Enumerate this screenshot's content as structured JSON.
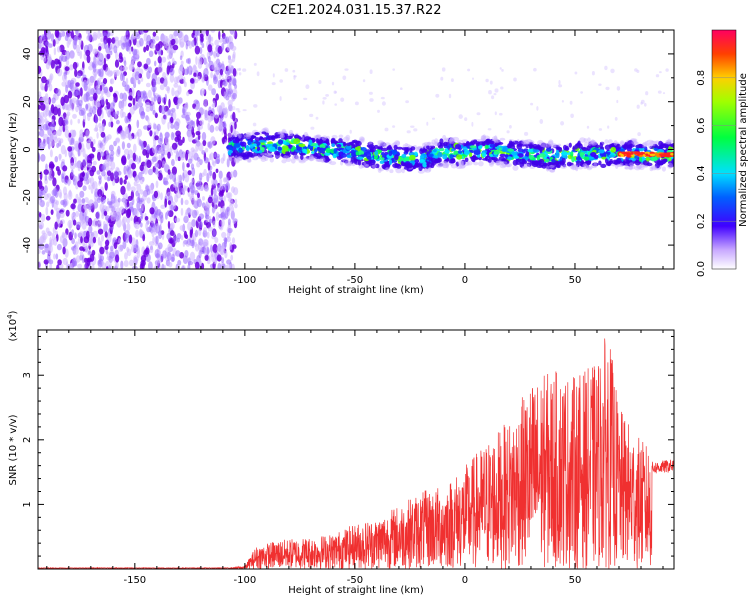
{
  "title": "C2E1.2024.031.15.37.R22",
  "colors": {
    "snr_line": "#f03030",
    "purple_dark": "#6a00e0",
    "purple_light": "#cdb4ff"
  },
  "chart_data": [
    {
      "type": "heatmap",
      "name": "spectrogram",
      "xlabel": "Height of straight line (km)",
      "ylabel": "Frequency (Hz)",
      "xlim": [
        -194,
        95
      ],
      "ylim": [
        -50,
        50
      ],
      "xticks": [
        "-150",
        "-100",
        "-50",
        "0",
        "50"
      ],
      "xtick_values": [
        -150,
        -100,
        -50,
        0,
        50
      ],
      "yticks": [
        "-40",
        "-20",
        "0",
        "20",
        "40"
      ],
      "ytick_values": [
        -40,
        -20,
        0,
        20,
        40
      ],
      "colorbar": {
        "label": "Normalized spectral amplitude",
        "ticks": [
          "0.0",
          "0.2",
          "0.4",
          "0.6",
          "0.8"
        ],
        "tick_values": [
          0.0,
          0.2,
          0.4,
          0.6,
          0.8
        ],
        "range": [
          0,
          1
        ]
      },
      "noise_region_x": [
        -194,
        -107
      ],
      "signal_band": {
        "x_start": -107,
        "center_frequency_points": [
          [
            -105,
            1
          ],
          [
            -90,
            2
          ],
          [
            -75,
            1
          ],
          [
            -60,
            0
          ],
          [
            -45,
            -2
          ],
          [
            -30,
            -3
          ],
          [
            -20,
            -4
          ],
          [
            -10,
            -1
          ],
          [
            0,
            -1
          ],
          [
            10,
            0
          ],
          [
            20,
            -2
          ],
          [
            30,
            -2
          ],
          [
            40,
            -3
          ],
          [
            50,
            -2
          ],
          [
            60,
            -2
          ],
          [
            70,
            -2
          ],
          [
            80,
            -2
          ],
          [
            95,
            -2
          ]
        ]
      },
      "grid": false
    },
    {
      "type": "line",
      "name": "snr",
      "xlabel": "Height of straight line (km)",
      "ylabel": "SNR (10 * v/v)",
      "y_multiplier": "(x10",
      "y_multiplier_exp": "4",
      "y_multiplier_close": ")",
      "xlim": [
        -194,
        95
      ],
      "ylim": [
        0,
        3.7
      ],
      "xticks": [
        "-150",
        "-100",
        "-50",
        "0",
        "50"
      ],
      "xtick_values": [
        -150,
        -100,
        -50,
        0,
        50
      ],
      "yticks": [
        "1",
        "2",
        "3"
      ],
      "ytick_values": [
        1,
        2,
        3
      ],
      "envelope": [
        [
          -194,
          0.01
        ],
        [
          -110,
          0.01
        ],
        [
          -100,
          0.05
        ],
        [
          -95,
          0.35
        ],
        [
          -85,
          0.45
        ],
        [
          -70,
          0.5
        ],
        [
          -60,
          0.55
        ],
        [
          -50,
          0.7
        ],
        [
          -40,
          0.8
        ],
        [
          -30,
          1.0
        ],
        [
          -20,
          1.2
        ],
        [
          -10,
          1.3
        ],
        [
          0,
          1.6
        ],
        [
          10,
          2.0
        ],
        [
          20,
          2.3
        ],
        [
          30,
          2.9
        ],
        [
          40,
          3.1
        ],
        [
          50,
          3.0
        ],
        [
          60,
          3.2
        ],
        [
          65,
          3.75
        ],
        [
          70,
          2.5
        ],
        [
          80,
          2.0
        ],
        [
          90,
          1.8
        ],
        [
          95,
          1.6
        ]
      ],
      "tail_level": [
        [
          70,
          1.5
        ],
        [
          95,
          1.6
        ]
      ],
      "grid": false
    }
  ]
}
